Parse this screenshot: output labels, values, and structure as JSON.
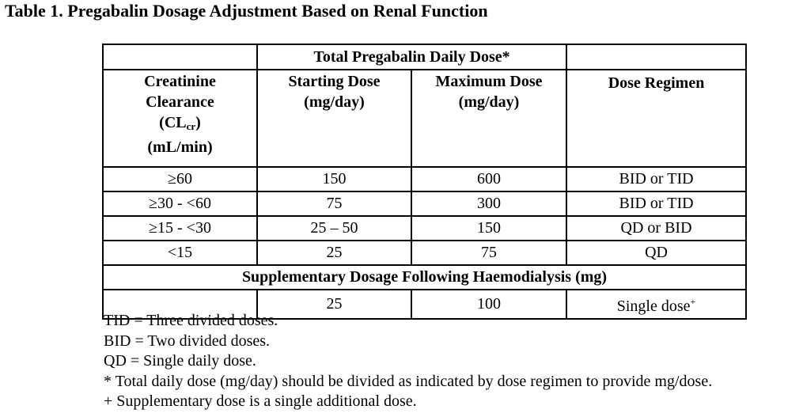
{
  "title": "Table 1. Pregabalin Dosage Adjustment Based on Renal Function",
  "table": {
    "group_header": "Total Pregabalin Daily Dose*",
    "columns": {
      "clcr_line1": "Creatinine",
      "clcr_line2": "Clearance",
      "clcr_line3_main": "(CL",
      "clcr_line3_sub": "cr",
      "clcr_line3_end": ")",
      "clcr_line4": "(mL/min)",
      "starting_line1": "Starting Dose",
      "starting_line2": "(mg/day)",
      "maximum_line1": "Maximum Dose",
      "maximum_line2": "(mg/day)",
      "regimen": "Dose Regimen"
    },
    "rows": [
      {
        "clcr": "≥60",
        "starting": "150",
        "maximum": "600",
        "regimen": "BID or TID"
      },
      {
        "clcr": "≥30 - <60",
        "starting": "75",
        "maximum": "300",
        "regimen": "BID or TID"
      },
      {
        "clcr": "≥15 - <30",
        "starting": "25 – 50",
        "maximum": "150",
        "regimen": "QD or BID"
      },
      {
        "clcr": "<15",
        "starting": "25",
        "maximum": "75",
        "regimen": "QD"
      }
    ],
    "supplementary_header": "Supplementary Dosage Following Haemodialysis (mg)",
    "supplementary_row": {
      "clcr": "",
      "starting": "25",
      "maximum": "100",
      "regimen": "Single dose",
      "regimen_sup": "+"
    }
  },
  "footnotes": [
    "TID = Three divided doses.",
    "BID = Two divided doses.",
    "QD = Single daily dose.",
    "* Total daily dose (mg/day) should be divided as indicated by dose regimen to provide mg/dose.",
    "+ Supplementary dose is a single additional dose."
  ]
}
